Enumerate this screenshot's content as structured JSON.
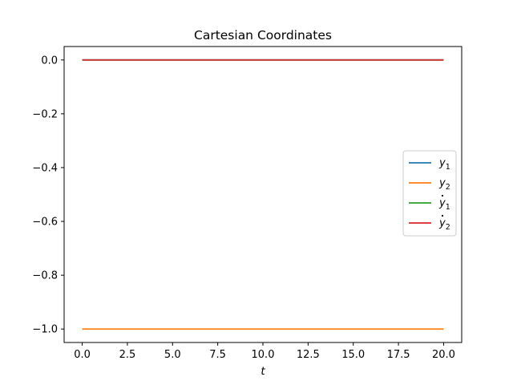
{
  "chart_data": {
    "type": "line",
    "title": "Cartesian Coordinates",
    "xlabel": "t",
    "ylabel": "",
    "xlim": [
      -1,
      21
    ],
    "ylim": [
      -1.05,
      0.05
    ],
    "xticks": [
      0.0,
      2.5,
      5.0,
      7.5,
      10.0,
      12.5,
      15.0,
      17.5,
      20.0
    ],
    "xtick_labels": [
      "0.0",
      "2.5",
      "5.0",
      "7.5",
      "10.0",
      "12.5",
      "15.0",
      "17.5",
      "20.0"
    ],
    "yticks": [
      0.0,
      -0.2,
      -0.4,
      -0.6,
      -0.8,
      -1.0
    ],
    "ytick_labels": [
      "0.0",
      "−0.2",
      "−0.4",
      "−0.6",
      "−0.8",
      "−1.0"
    ],
    "grid": false,
    "legend_position": "center-right",
    "series": [
      {
        "name": "y1",
        "base": "y",
        "sub": "1",
        "dot": false,
        "color": "#1f77b4",
        "x": [
          0,
          20
        ],
        "y": [
          0,
          0
        ]
      },
      {
        "name": "y2",
        "base": "y",
        "sub": "2",
        "dot": false,
        "color": "#ff7f0e",
        "x": [
          0,
          20
        ],
        "y": [
          -1,
          -1
        ]
      },
      {
        "name": "ẏ1",
        "base": "y",
        "sub": "1",
        "dot": true,
        "color": "#2ca02c",
        "x": [
          0,
          20
        ],
        "y": [
          0,
          0
        ]
      },
      {
        "name": "ẏ2",
        "base": "y",
        "sub": "2",
        "dot": true,
        "color": "#d62728",
        "x": [
          0,
          20
        ],
        "y": [
          0,
          0
        ]
      }
    ]
  }
}
